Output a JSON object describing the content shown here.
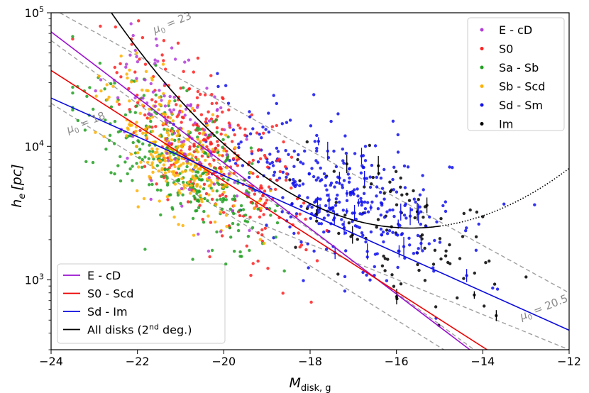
{
  "chart_data": {
    "type": "scatter",
    "xlabel": "M",
    "xlabel_sub": "disk, g",
    "ylabel": "h",
    "ylabel_sub": "e",
    "ylabel_unit": "[pc]",
    "xlim": [
      -24,
      -12
    ],
    "ylim": [
      300,
      100000
    ],
    "yscale": "log",
    "grid": false,
    "x_ticks": [
      -24,
      -22,
      -20,
      -18,
      -16,
      -14,
      -12
    ],
    "x_tick_labels": [
      "−24",
      "−22",
      "−20",
      "−18",
      "−16",
      "−14",
      "−12"
    ],
    "y_ticks": [
      1000,
      10000,
      100000
    ],
    "y_tick_labels": [
      {
        "base": "10",
        "exp": "3"
      },
      {
        "base": "10",
        "exp": "4"
      },
      {
        "base": "10",
        "exp": "5"
      }
    ],
    "scatter_legend_position": "top-right",
    "fit_legend_position": "bottom-left",
    "scatter_series": [
      {
        "name": "E - cD",
        "color": "#b23cd8",
        "center": [
          -21.3,
          15000
        ],
        "count": 110
      },
      {
        "name": "S0",
        "color": "#ff2020",
        "center": [
          -20.3,
          9000
        ],
        "count": 300
      },
      {
        "name": "Sa - Sb",
        "color": "#22a022",
        "center": [
          -21.0,
          7500
        ],
        "count": 320
      },
      {
        "name": "Sb - Scd",
        "color": "#ffb000",
        "center": [
          -21.1,
          9000
        ],
        "count": 280
      },
      {
        "name": "Sd - Sm",
        "color": "#1010ee",
        "center": [
          -17.4,
          4500
        ],
        "count": 360
      },
      {
        "name": "Im",
        "color": "#000000",
        "center": [
          -15.8,
          2200
        ],
        "count": 100
      }
    ],
    "fit_lines": [
      {
        "name": "E - cD",
        "color": "#9a10d0",
        "x": [
          -24,
          -14.3
        ],
        "y": [
          72000,
          300
        ],
        "type": "linear"
      },
      {
        "name": "S0 - Scd",
        "color": "#ee0000",
        "x": [
          -24,
          -13.9
        ],
        "y": [
          37000,
          300
        ],
        "type": "linear"
      },
      {
        "name": "Sd - Im",
        "color": "#0a0ae0",
        "x": [
          -24,
          -12
        ],
        "y": [
          23000,
          420
        ],
        "type": "linear"
      },
      {
        "name": "All disks (2nd deg.)",
        "label_plain": "All disks (2",
        "label_sup": "nd",
        "label_end": " deg.)",
        "color": "#000000",
        "type": "quadratic",
        "coeffs": [
          0.0334,
          1.0459,
          11.576
        ],
        "x_solid": [
          -24,
          -15
        ],
        "x_dotted": [
          -15,
          -12
        ]
      }
    ],
    "iso_lines": [
      {
        "label_mu": "μ",
        "label_sub": "0",
        "label_val": " = 23",
        "x": [
          -23.8,
          -12
        ],
        "y": [
          100000,
          800
        ],
        "label_pos": [
          -21.6,
          70000
        ],
        "angle": -22
      },
      {
        "label_mu": "μ",
        "label_sub": "0",
        "label_val": " = 18",
        "x": [
          -24,
          -14.9
        ],
        "y": [
          21000,
          300
        ],
        "label_pos": [
          -23.6,
          12500
        ],
        "angle": -22
      },
      {
        "label_mu": "μ",
        "label_sub": "0",
        "label_val": " = 20.5",
        "x": [
          -20.1,
          -12
        ],
        "y": [
          3500,
          300
        ],
        "label_pos": [
          -13.1,
          500
        ],
        "angle": -22
      },
      {
        "label_mu": "",
        "label_sub": "",
        "label_val": "",
        "x": [
          -24,
          -14.2
        ],
        "y": [
          62000,
          300
        ],
        "label_pos": null,
        "angle": 0
      }
    ],
    "iso_color": "#a0a0a0"
  }
}
